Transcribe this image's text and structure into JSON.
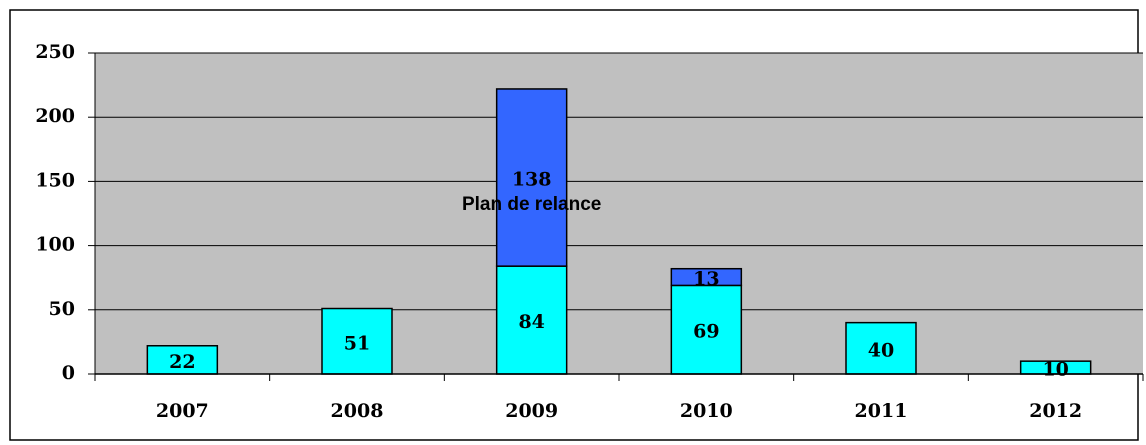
{
  "chart_data": {
    "type": "bar",
    "stacked": true,
    "categories": [
      "2007",
      "2008",
      "2009",
      "2010",
      "2011",
      "2012"
    ],
    "series": [
      {
        "color": "#00ffff",
        "values": [
          22,
          51,
          84,
          69,
          40,
          10
        ]
      },
      {
        "color": "#3366ff",
        "values": [
          null,
          null,
          138,
          13,
          null,
          null
        ]
      }
    ],
    "annotations": [
      "Plan de relance"
    ],
    "ylim": [
      0,
      250
    ],
    "yticks": [
      0,
      50,
      100,
      150,
      200,
      250
    ],
    "grid": true,
    "plot_background": "#c0c0c0"
  }
}
